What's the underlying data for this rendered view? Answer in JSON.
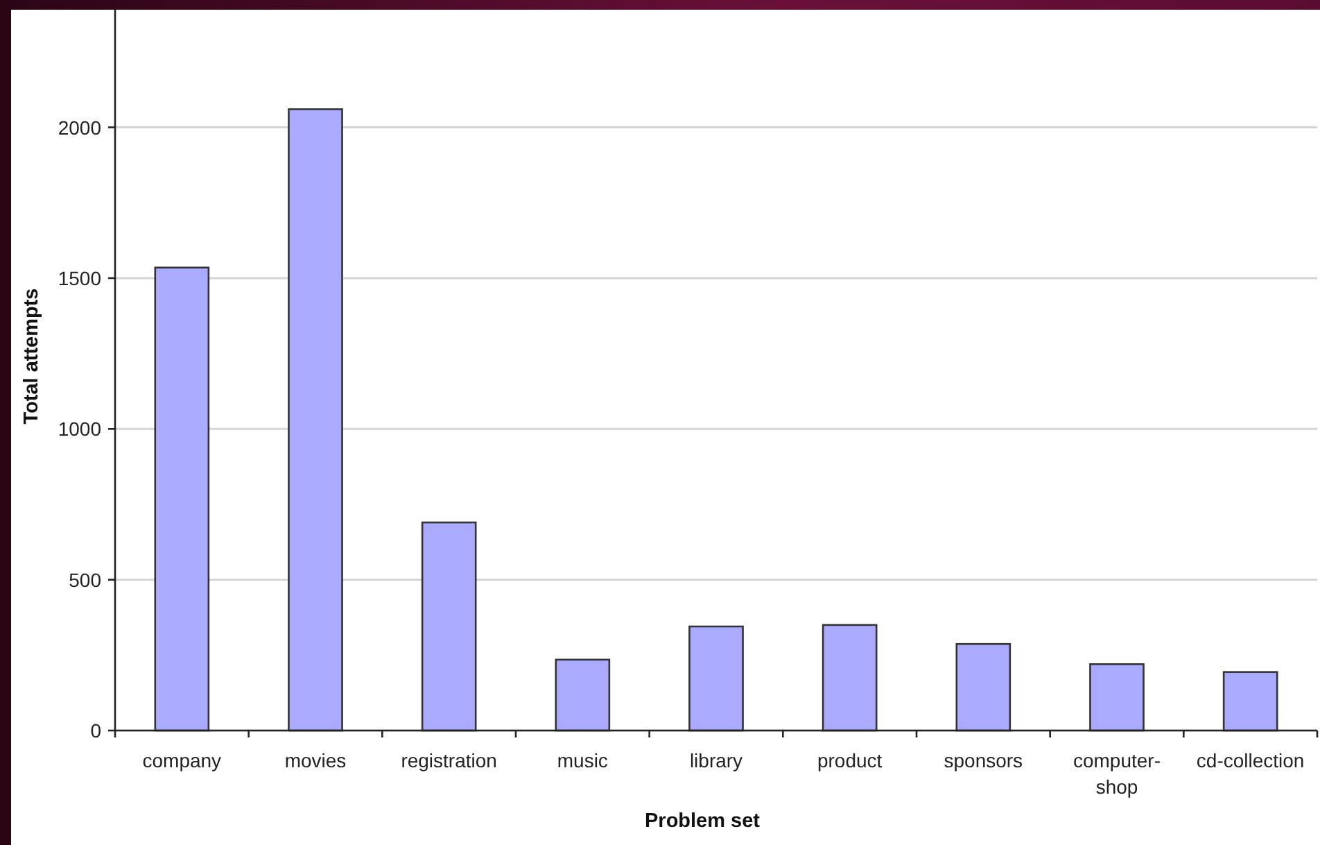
{
  "chart_data": {
    "type": "bar",
    "xlabel": "Problem set",
    "ylabel": "Total attempts",
    "categories": [
      "company",
      "movies",
      "registration",
      "music",
      "library",
      "product",
      "sponsors",
      "computer-shop",
      "cd-collection"
    ],
    "values": [
      1535,
      2060,
      690,
      235,
      345,
      350,
      287,
      220,
      194
    ],
    "color": "#aaaaff",
    "ylim": [
      0,
      2390
    ],
    "yticks": [
      0,
      500,
      1000,
      1500,
      2000
    ],
    "grid": "y"
  }
}
